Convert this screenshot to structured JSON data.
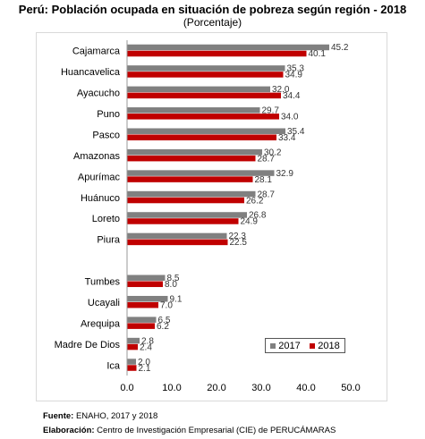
{
  "title": "Perú: Población ocupada en situación de pobreza según región - 2018",
  "subtitle": "(Porcentaje)",
  "colors": {
    "2017": "#808080",
    "2018": "#c00000"
  },
  "legend": {
    "s1": "2017",
    "s2": "2018"
  },
  "footer": {
    "source_label": "Fuente:",
    "source_text": " ENAHO, 2017 y 2018",
    "elab_label": "Elaboración:",
    "elab_text": " Centro de Investigación Empresarial (CIE) de PERUCÁMARAS"
  },
  "chart_data": {
    "type": "bar",
    "orientation": "horizontal",
    "categories": [
      "Cajamarca",
      "Huancavelica",
      "Ayacucho",
      "Puno",
      "Pasco",
      "Amazonas",
      "Apurímac",
      "Huánuco",
      "Loreto",
      "Piura",
      "",
      "Tumbes",
      "Ucayali",
      "Arequipa",
      "Madre De Dios",
      "Ica"
    ],
    "series": [
      {
        "name": "2017",
        "values": [
          45.2,
          35.3,
          32.0,
          29.7,
          35.4,
          30.2,
          32.9,
          28.7,
          26.8,
          22.3,
          null,
          8.5,
          9.1,
          6.5,
          2.8,
          2.0
        ]
      },
      {
        "name": "2018",
        "values": [
          40.1,
          34.9,
          34.4,
          34.0,
          33.4,
          28.7,
          28.1,
          26.2,
          24.9,
          22.5,
          null,
          8.0,
          7.0,
          6.2,
          2.4,
          2.1
        ]
      }
    ],
    "xlim": [
      0,
      50
    ],
    "xticks": [
      "0.0",
      "10.0",
      "20.0",
      "30.0",
      "40.0",
      "50.0"
    ],
    "grid": false,
    "legend_position": "bottom-right"
  }
}
